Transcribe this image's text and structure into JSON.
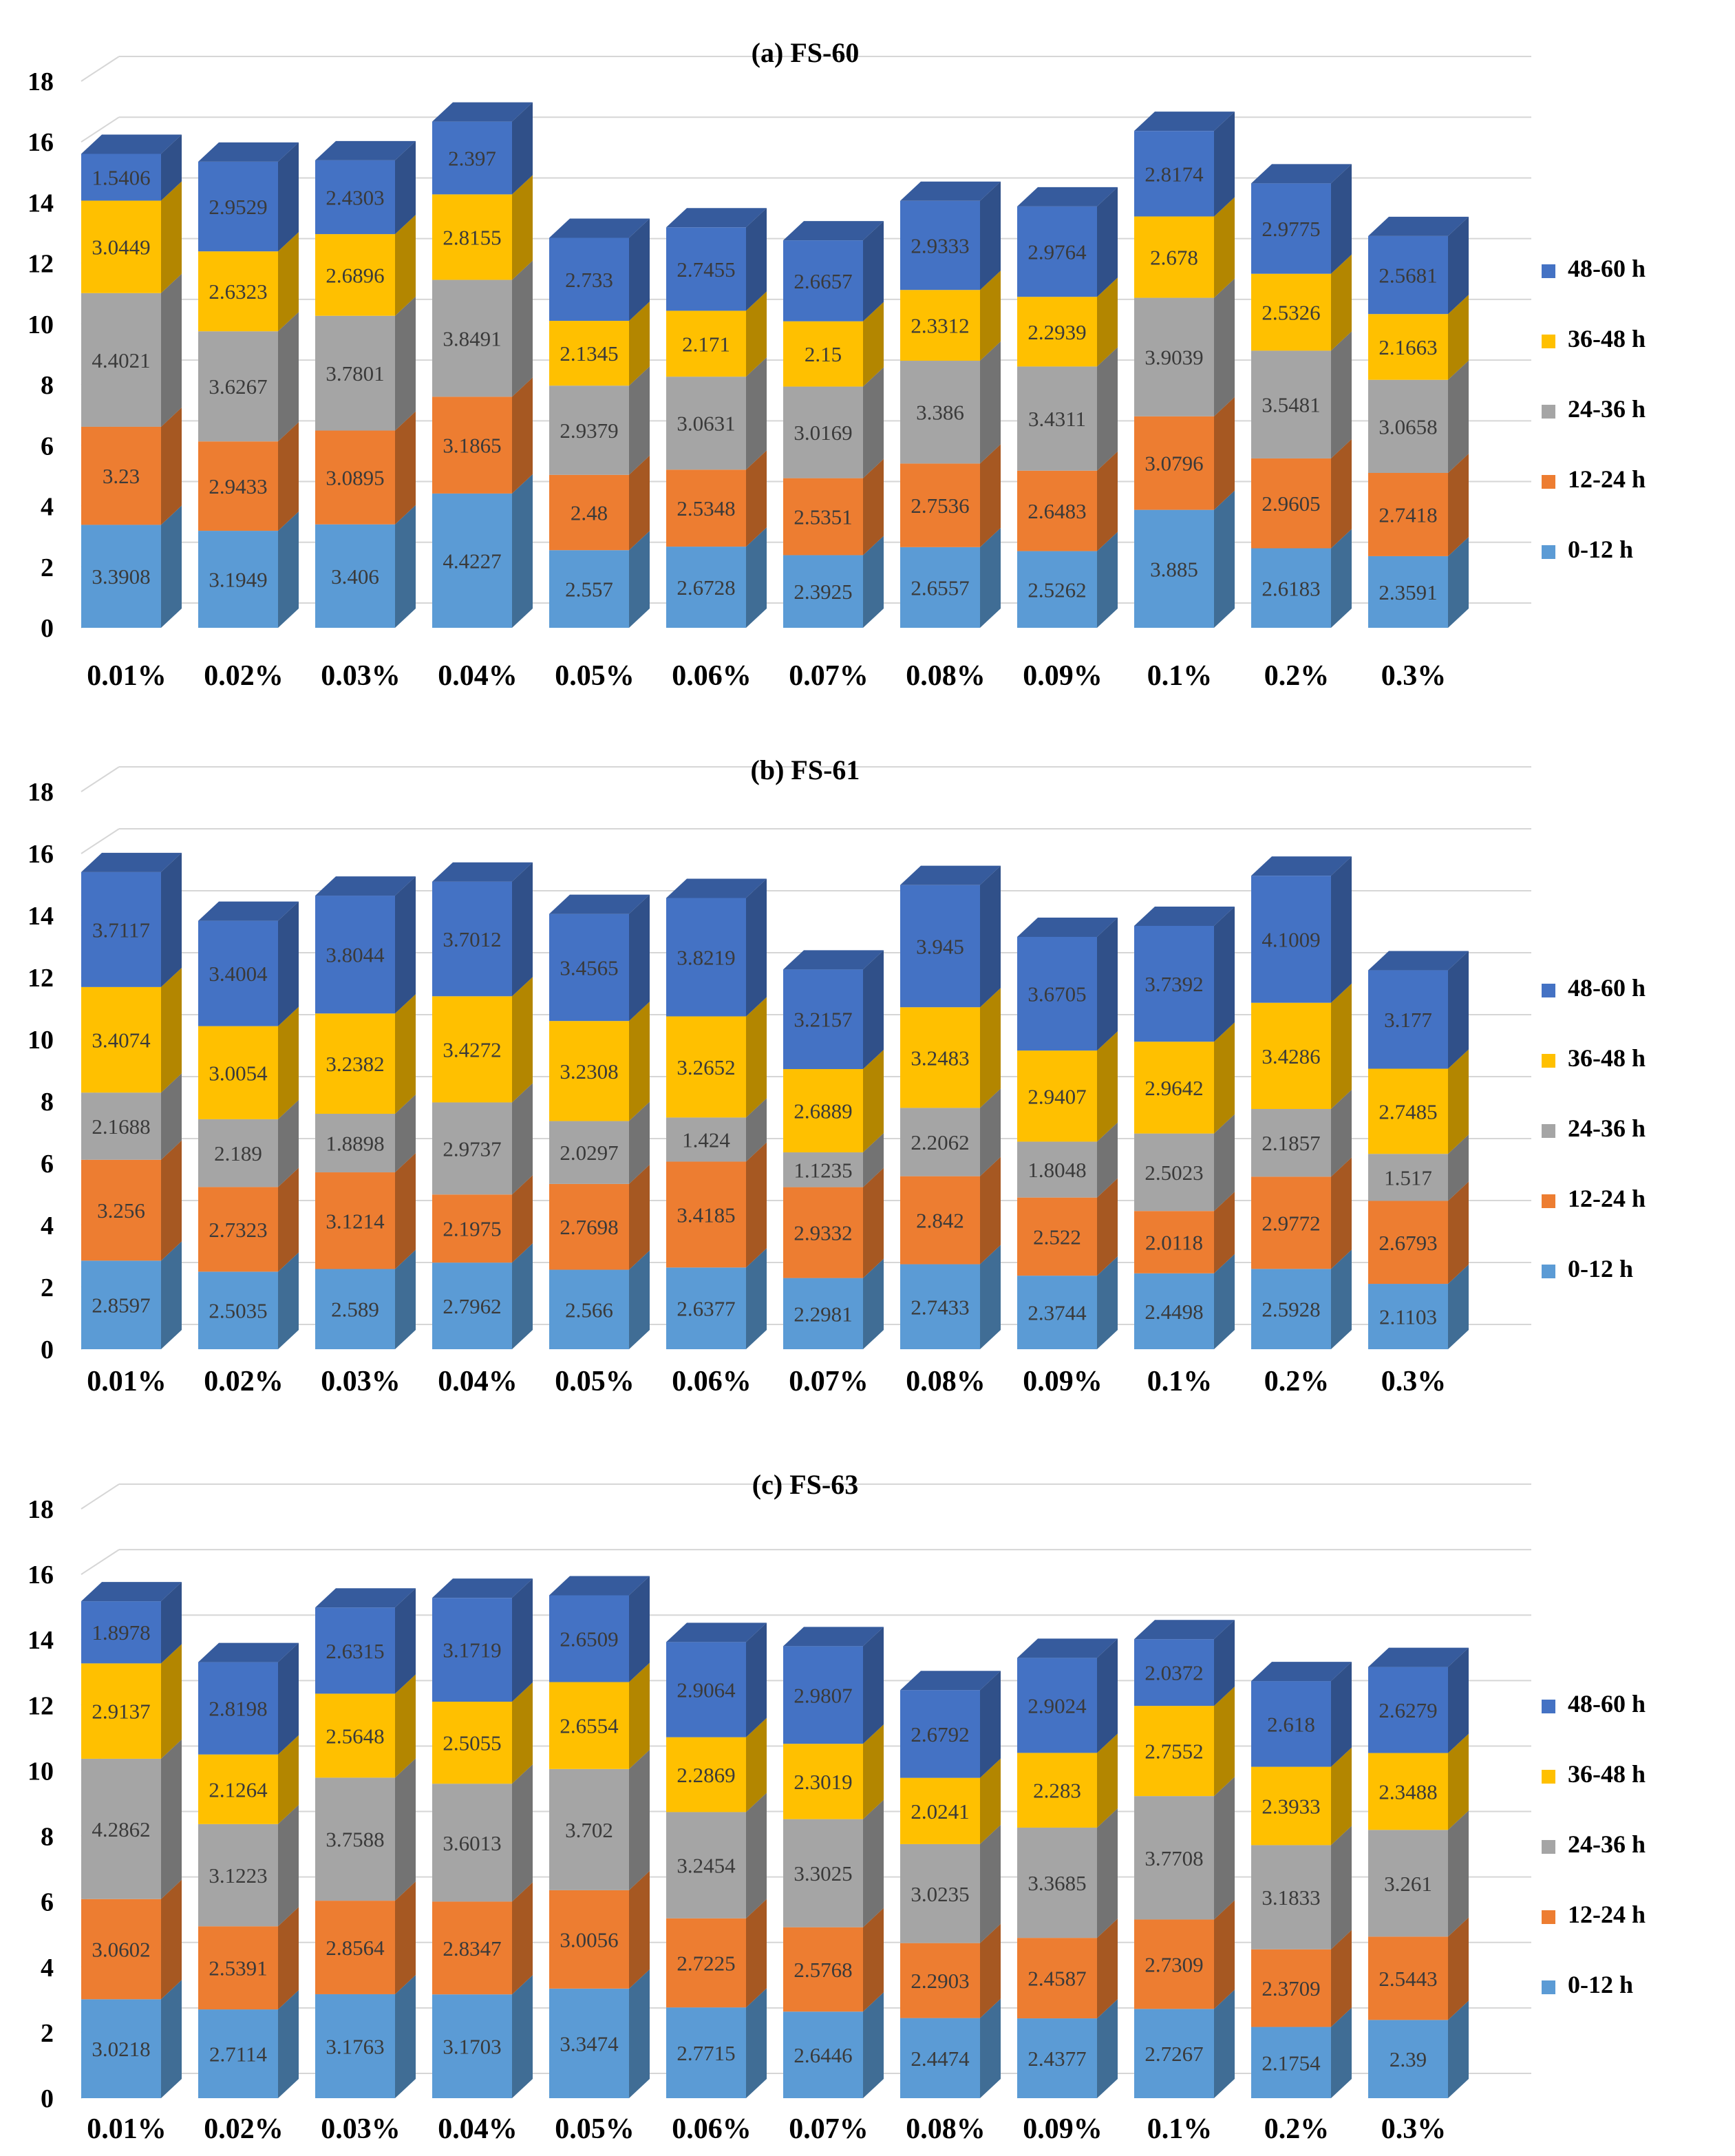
{
  "chart_data": [
    {
      "type": "bar",
      "stacked": true,
      "style": "3d",
      "title": "(a) FS-60",
      "categories": [
        "0.01%",
        "0.02%",
        "0.03%",
        "0.04%",
        "0.05%",
        "0.06%",
        "0.07%",
        "0.08%",
        "0.09%",
        "0.1%",
        "0.2%",
        "0.3%"
      ],
      "ylim": [
        0,
        18
      ],
      "yticks": [
        "0",
        "2",
        "4",
        "6",
        "8",
        "10",
        "12",
        "14",
        "16",
        "18"
      ],
      "grid": true,
      "legend_position": "right",
      "series": [
        {
          "name": "0-12 h",
          "color": "#5b9bd5",
          "values": [
            "3.3908",
            "3.1949",
            "3.406",
            "4.4227",
            "2.557",
            "2.6728",
            "2.3925",
            "2.6557",
            "2.5262",
            "3.885",
            "2.6183",
            "2.3591"
          ]
        },
        {
          "name": "12-24 h",
          "color": "#ed7d31",
          "values": [
            "3.23",
            "2.9433",
            "3.0895",
            "3.1865",
            "2.48",
            "2.5348",
            "2.5351",
            "2.7536",
            "2.6483",
            "3.0796",
            "2.9605",
            "2.7418"
          ]
        },
        {
          "name": "24-36 h",
          "color": "#a5a5a5",
          "values": [
            "4.4021",
            "3.6267",
            "3.7801",
            "3.8491",
            "2.9379",
            "3.0631",
            "3.0169",
            "3.386",
            "3.4311",
            "3.9039",
            "3.5481",
            "3.0658"
          ]
        },
        {
          "name": "36-48 h",
          "color": "#ffc000",
          "values": [
            "3.0449",
            "2.6323",
            "2.6896",
            "2.8155",
            "2.1345",
            "2.171",
            "2.15",
            "2.3312",
            "2.2939",
            "2.678",
            "2.5326",
            "2.1663"
          ]
        },
        {
          "name": "48-60 h",
          "color": "#4472c4",
          "values": [
            "1.5406",
            "2.9529",
            "2.4303",
            "2.397",
            "2.733",
            "2.7455",
            "2.6657",
            "2.9333",
            "2.9764",
            "2.8174",
            "2.9775",
            "2.5681"
          ]
        }
      ]
    },
    {
      "type": "bar",
      "stacked": true,
      "style": "3d",
      "title": "(b) FS-61",
      "categories": [
        "0.01%",
        "0.02%",
        "0.03%",
        "0.04%",
        "0.05%",
        "0.06%",
        "0.07%",
        "0.08%",
        "0.09%",
        "0.1%",
        "0.2%",
        "0.3%"
      ],
      "ylim": [
        0,
        18
      ],
      "yticks": [
        "0",
        "2",
        "4",
        "6",
        "8",
        "10",
        "12",
        "14",
        "16",
        "18"
      ],
      "grid": true,
      "legend_position": "right",
      "series": [
        {
          "name": "0-12 h",
          "color": "#5b9bd5",
          "values": [
            "2.8597",
            "2.5035",
            "2.589",
            "2.7962",
            "2.566",
            "2.6377",
            "2.2981",
            "2.7433",
            "2.3744",
            "2.4498",
            "2.5928",
            "2.1103"
          ]
        },
        {
          "name": "12-24 h",
          "color": "#ed7d31",
          "values": [
            "3.256",
            "2.7323",
            "3.1214",
            "2.1975",
            "2.7698",
            "3.4185",
            "2.9332",
            "2.842",
            "2.522",
            "2.0118",
            "2.9772",
            "2.6793"
          ]
        },
        {
          "name": "24-36 h",
          "color": "#a5a5a5",
          "values": [
            "2.1688",
            "2.189",
            "1.8898",
            "2.9737",
            "2.0297",
            "1.424",
            "1.1235",
            "2.2062",
            "1.8048",
            "2.5023",
            "2.1857",
            "1.517"
          ]
        },
        {
          "name": "36-48 h",
          "color": "#ffc000",
          "values": [
            "3.4074",
            "3.0054",
            "3.2382",
            "3.4272",
            "3.2308",
            "3.2652",
            "2.6889",
            "3.2483",
            "2.9407",
            "2.9642",
            "3.4286",
            "2.7485"
          ]
        },
        {
          "name": "48-60 h",
          "color": "#4472c4",
          "values": [
            "3.7117",
            "3.4004",
            "3.8044",
            "3.7012",
            "3.4565",
            "3.8219",
            "3.2157",
            "3.945",
            "3.6705",
            "3.7392",
            "4.1009",
            "3.177"
          ]
        }
      ]
    },
    {
      "type": "bar",
      "stacked": true,
      "style": "3d",
      "title": "(c) FS-63",
      "categories": [
        "0.01%",
        "0.02%",
        "0.03%",
        "0.04%",
        "0.05%",
        "0.06%",
        "0.07%",
        "0.08%",
        "0.09%",
        "0.1%",
        "0.2%",
        "0.3%"
      ],
      "ylim": [
        0,
        18
      ],
      "yticks": [
        "0",
        "2",
        "4",
        "6",
        "8",
        "10",
        "12",
        "14",
        "16",
        "18"
      ],
      "grid": true,
      "legend_position": "right",
      "series": [
        {
          "name": "0-12 h",
          "color": "#5b9bd5",
          "values": [
            "3.0218",
            "2.7114",
            "3.1763",
            "3.1703",
            "3.3474",
            "2.7715",
            "2.6446",
            "2.4474",
            "2.4377",
            "2.7267",
            "2.1754",
            "2.39"
          ]
        },
        {
          "name": "12-24 h",
          "color": "#ed7d31",
          "values": [
            "3.0602",
            "2.5391",
            "2.8564",
            "2.8347",
            "3.0056",
            "2.7225",
            "2.5768",
            "2.2903",
            "2.4587",
            "2.7309",
            "2.3709",
            "2.5443"
          ]
        },
        {
          "name": "24-36 h",
          "color": "#a5a5a5",
          "values": [
            "4.2862",
            "3.1223",
            "3.7588",
            "3.6013",
            "3.702",
            "3.2454",
            "3.3025",
            "3.0235",
            "3.3685",
            "3.7708",
            "3.1833",
            "3.261"
          ]
        },
        {
          "name": "36-48 h",
          "color": "#ffc000",
          "values": [
            "2.9137",
            "2.1264",
            "2.5648",
            "2.5055",
            "2.6554",
            "2.2869",
            "2.3019",
            "2.0241",
            "2.283",
            "2.7552",
            "2.3933",
            "2.3488"
          ]
        },
        {
          "name": "48-60 h",
          "color": "#4472c4",
          "values": [
            "1.8978",
            "2.8198",
            "2.6315",
            "3.1719",
            "2.6509",
            "2.9064",
            "2.9807",
            "2.6792",
            "2.9024",
            "2.0372",
            "2.618",
            "2.6279"
          ]
        }
      ]
    }
  ]
}
